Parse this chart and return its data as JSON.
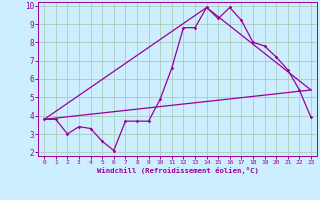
{
  "bg_color": "#cceeff",
  "grid_color": "#aaccbb",
  "line_color": "#990099",
  "xlabel": "Windchill (Refroidissement éolien,°C)",
  "xlim": [
    -0.5,
    23.5
  ],
  "ylim": [
    1.8,
    10.2
  ],
  "xticks": [
    0,
    1,
    2,
    3,
    4,
    5,
    6,
    7,
    8,
    9,
    10,
    11,
    12,
    13,
    14,
    15,
    16,
    17,
    18,
    19,
    20,
    21,
    22,
    23
  ],
  "yticks": [
    2,
    3,
    4,
    5,
    6,
    7,
    8,
    9,
    10
  ],
  "line1_x": [
    0,
    1,
    2,
    3,
    4,
    5,
    6,
    7,
    8,
    9,
    10,
    11,
    12,
    13,
    14,
    15,
    16,
    17,
    18,
    19,
    20,
    21,
    22,
    23
  ],
  "line1_y": [
    3.8,
    3.8,
    3.0,
    3.4,
    3.3,
    2.6,
    2.1,
    3.7,
    3.7,
    3.7,
    4.9,
    6.6,
    8.8,
    8.8,
    9.9,
    9.3,
    9.9,
    9.2,
    8.0,
    7.8,
    7.2,
    6.5,
    5.4,
    3.9
  ],
  "line2_x": [
    0,
    23
  ],
  "line2_y": [
    3.8,
    5.4
  ],
  "line3_x": [
    0,
    14,
    23
  ],
  "line3_y": [
    3.8,
    9.9,
    5.4
  ],
  "xtick_fontsize": 4.5,
  "ytick_fontsize": 5.5,
  "xlabel_fontsize": 5.2
}
